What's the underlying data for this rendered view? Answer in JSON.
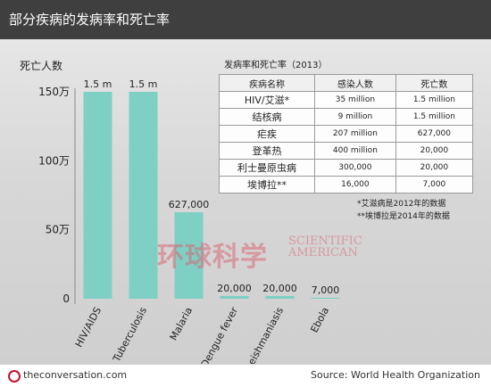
{
  "header": {
    "title": "部分疾病的发病率和死亡率"
  },
  "chart_data": {
    "type": "bar",
    "ylabel": "死亡人数",
    "ylim": [
      0,
      1500000
    ],
    "yticks": [
      {
        "value": 0,
        "label": "0"
      },
      {
        "value": 500000,
        "label": "50万"
      },
      {
        "value": 1000000,
        "label": "100万"
      },
      {
        "value": 1500000,
        "label": "150万"
      }
    ],
    "categories": [
      "HIV/AIDS",
      "Tuberculosis",
      "Malaria",
      "Dengue fever",
      "Leishmaniasis",
      "Ebola"
    ],
    "values": [
      1500000,
      1500000,
      627000,
      20000,
      20000,
      7000
    ],
    "data_labels": [
      "1.5 m",
      "1.5 m",
      "627,000",
      "20,000",
      "20,000",
      "7,000"
    ],
    "colors": {
      "bar": "#7ecfc4",
      "ebola_label": "#8b3a3a",
      "axis": "#8a8a8a"
    }
  },
  "table": {
    "title": "发病率和死亡率（2013）",
    "headers": [
      "疾病名称",
      "感染人数",
      "死亡数"
    ],
    "rows": [
      [
        "HIV/艾滋*",
        "35 million",
        "1.5 million"
      ],
      [
        "结核病",
        "9 million",
        "1.5 million"
      ],
      [
        "疟疾",
        "207 million",
        "627,000"
      ],
      [
        "登革热",
        "400 million",
        "20,000"
      ],
      [
        "利士曼原虫病",
        "300,000",
        "20,000"
      ],
      [
        "埃博拉**",
        "16,000",
        "7,000"
      ]
    ]
  },
  "notes": [
    "*艾滋病是2012年的数据",
    "**埃博拉是2014年的数据"
  ],
  "watermark": {
    "cn": "环球科学",
    "en_line1": "SCIENTIFIC",
    "en_line2": "AMERICAN"
  },
  "footer": {
    "brand": "theconversation.com",
    "source": "Source: World Health Organization"
  }
}
